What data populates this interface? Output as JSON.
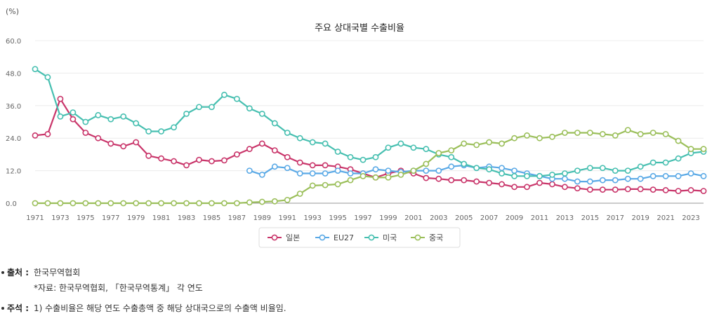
{
  "chart_data": {
    "type": "line",
    "title": "주요 상대국별 수출비율",
    "ylabel": "(%)",
    "xlabel": "",
    "ylim": [
      0,
      60
    ],
    "yticks": [
      "0.0",
      "12.0",
      "24.0",
      "36.0",
      "48.0",
      "60.0"
    ],
    "xticks": [
      "1971",
      "1973",
      "1975",
      "1977",
      "1979",
      "1981",
      "1983",
      "1985",
      "1987",
      "1989",
      "1991",
      "1993",
      "1995",
      "1997",
      "1999",
      "2001",
      "2003",
      "2005",
      "2007",
      "2009",
      "2011",
      "2013",
      "2015",
      "2017",
      "2019",
      "2021",
      "2023"
    ],
    "grid": true,
    "legend_position": "bottom",
    "x": [
      1971,
      1972,
      1973,
      1974,
      1975,
      1976,
      1977,
      1978,
      1979,
      1980,
      1981,
      1982,
      1983,
      1984,
      1985,
      1986,
      1987,
      1988,
      1989,
      1990,
      1991,
      1992,
      1993,
      1994,
      1995,
      1996,
      1997,
      1998,
      1999,
      2000,
      2001,
      2002,
      2003,
      2004,
      2005,
      2006,
      2007,
      2008,
      2009,
      2010,
      2011,
      2012,
      2013,
      2014,
      2015,
      2016,
      2017,
      2018,
      2019,
      2020,
      2021,
      2022,
      2023,
      2024
    ],
    "series": [
      {
        "name": "일본",
        "color": "#c9356a",
        "values": [
          25,
          25.5,
          38.5,
          31,
          26,
          24,
          22,
          21,
          22.5,
          17.5,
          16.5,
          15.5,
          14,
          16,
          15.5,
          15.8,
          18,
          20,
          22,
          19.5,
          17,
          15,
          14,
          14,
          13.5,
          12.5,
          11,
          9.5,
          11,
          12,
          11,
          9.3,
          9,
          8.5,
          8.5,
          8,
          7.5,
          7,
          6,
          6,
          7.5,
          7,
          6,
          5.5,
          5,
          5,
          5,
          5.2,
          5.2,
          5,
          4.8,
          4.5,
          4.8,
          4.5
        ]
      },
      {
        "name": "EU27",
        "color": "#5aa9e6",
        "values": [
          null,
          null,
          null,
          null,
          null,
          null,
          null,
          null,
          null,
          null,
          null,
          null,
          null,
          null,
          null,
          null,
          null,
          12,
          10.5,
          13.5,
          13,
          11,
          11,
          11,
          12,
          11,
          11,
          12.5,
          12,
          11.5,
          12,
          12,
          12,
          13.5,
          14,
          13,
          13.5,
          13,
          12,
          11,
          10,
          9,
          9,
          8,
          8,
          8.5,
          8.5,
          9,
          9,
          10,
          10,
          10,
          11,
          10
        ]
      },
      {
        "name": "미국",
        "color": "#46bfb0",
        "values": [
          49.5,
          46.5,
          32,
          33.5,
          30,
          32.5,
          31,
          32,
          29.5,
          26.5,
          26.5,
          28,
          33,
          35.5,
          35.5,
          40,
          38.5,
          35,
          33,
          29.5,
          26,
          24,
          22.5,
          22,
          19,
          17,
          16,
          17,
          20.5,
          22,
          20.5,
          20,
          18,
          17,
          14.5,
          13,
          12.5,
          11,
          10,
          10,
          10,
          10.5,
          11,
          12,
          13,
          13,
          12,
          12,
          13.5,
          15,
          15,
          16.5,
          18.5,
          19
        ]
      },
      {
        "name": "중국",
        "color": "#9bbf5a",
        "values": [
          0,
          0,
          0,
          0,
          0,
          0,
          0,
          0,
          0,
          0,
          0,
          0,
          0,
          0,
          0,
          0,
          0,
          0.3,
          0.5,
          0.7,
          1.2,
          3.5,
          6.5,
          6.7,
          7,
          8.5,
          10,
          9.5,
          9.5,
          10.5,
          12,
          14.5,
          18.5,
          19.5,
          22,
          21.5,
          22.5,
          22,
          24,
          25,
          24,
          24.5,
          26,
          26,
          26,
          25.5,
          25,
          27,
          25.5,
          26,
          25.5,
          23,
          20,
          20
        ]
      }
    ]
  },
  "footer": {
    "source_label": "출처 :",
    "source_text": "한국무역협회",
    "source_sub": "*자료: 한국무역협회, 「한국무역통계」 각 연도",
    "note_label": "주석 :",
    "note_text": "1) 수출비율은 해당 연도 수출총액 중 해당 상대국으로의 수출액 비율임."
  }
}
